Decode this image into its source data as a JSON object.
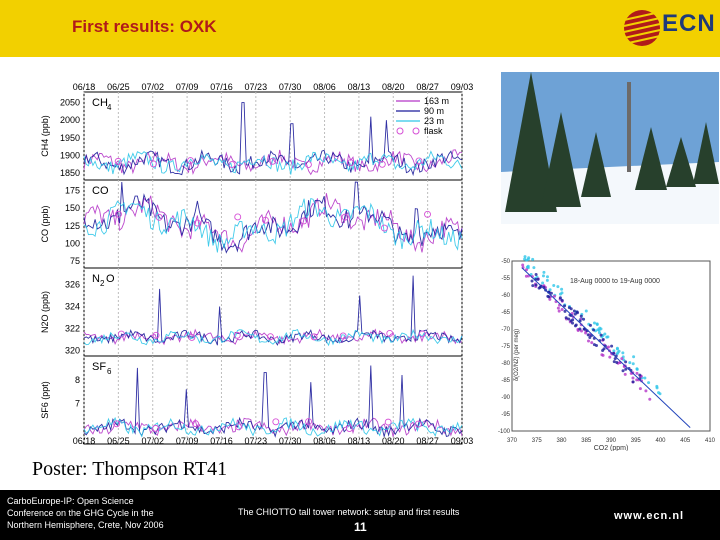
{
  "slide": {
    "title": "First results: OXK",
    "logo_text": "ECN",
    "poster": "Poster: Thompson RT41",
    "footer_left": [
      "CarboEurope-IP: Open Science",
      "Conference on the GHG Cycle in the",
      "Northern Hemisphere, Crete, Nov 2006"
    ],
    "footer_mid": "The CHIOTTO tall tower network: setup and first results",
    "page_number": "11",
    "url": "www.ecn.nl"
  },
  "chart_data": [
    {
      "type": "line",
      "x_ticks": [
        "06/18",
        "06/25",
        "07/02",
        "07/09",
        "07/16",
        "07/23",
        "07/30",
        "08/06",
        "08/13",
        "08/20",
        "08/27",
        "09/03"
      ],
      "series_legend": [
        {
          "name": "163 m",
          "color": "#b536c8"
        },
        {
          "name": "90 m",
          "color": "#1b1b9a"
        },
        {
          "name": "23 m",
          "color": "#2ec5e8"
        },
        {
          "name": "flask",
          "color": "#d64fd6"
        }
      ],
      "panels": [
        {
          "label": "CH",
          "sub": "4",
          "ylabel": "CH4 (ppb)",
          "yticks": [
            2050,
            2000,
            1950,
            1900,
            1850
          ],
          "ylim": [
            1830,
            2080
          ],
          "base": 1880,
          "amp": 30,
          "spikes": [
            [
              0.42,
              2050
            ],
            [
              0.55,
              1990
            ],
            [
              0.76,
              2010
            ],
            [
              0.8,
              2000
            ]
          ]
        },
        {
          "label": "CO",
          "sub": "",
          "ylabel": "CO (ppb)",
          "yticks": [
            175,
            150,
            125,
            100,
            75
          ],
          "ylim": [
            65,
            190
          ],
          "base": 128,
          "amp": 22,
          "spikes": [
            [
              0.1,
              172
            ],
            [
              0.3,
              168
            ],
            [
              0.72,
              175
            ],
            [
              0.88,
              165
            ]
          ]
        },
        {
          "label": "N",
          "sub": "2",
          "label_tail": "O",
          "ylabel": "N2O (ppb)",
          "yticks": [
            326,
            324,
            322,
            320
          ],
          "ylim": [
            319.5,
            327.5
          ],
          "base": 321.2,
          "amp": 0.6,
          "spikes": [
            [
              0.2,
              325.6
            ],
            [
              0.36,
              324
            ],
            [
              0.73,
              325
            ],
            [
              0.87,
              326.8
            ]
          ]
        },
        {
          "label": "SF",
          "sub": "6",
          "ylabel": "SF6 (ppt)",
          "yticks": [
            "8",
            "7"
          ],
          "ylim": [
            5.3,
            9
          ],
          "base": 6.0,
          "amp": 0.35,
          "spikes": [
            [
              0.14,
              8.5
            ],
            [
              0.27,
              7.6
            ],
            [
              0.48,
              8.3
            ],
            [
              0.6,
              7.9
            ],
            [
              0.76,
              8.6
            ],
            [
              0.84,
              8.2
            ]
          ]
        }
      ]
    },
    {
      "type": "scatter",
      "title": "18-Aug 0000 to 19-Aug 0000",
      "xlabel": "CO2 (ppm)",
      "ylabel": "δ(O2/N2) (per meg)",
      "x_ticks": [
        370,
        375,
        380,
        385,
        390,
        395,
        400,
        405,
        410
      ],
      "y_ticks": [
        -50,
        -55,
        -60,
        -65,
        -70,
        -75,
        -80,
        -85,
        -90,
        -95,
        -100
      ],
      "xlim": [
        370,
        410
      ],
      "ylim": [
        -100,
        -50
      ],
      "trend": {
        "x": [
          372,
          406
        ],
        "y": [
          -52,
          -99
        ]
      },
      "clusters": [
        {
          "color": "#2ec5e8",
          "x": [
            372,
            400
          ],
          "y_offset": 3
        },
        {
          "color": "#b536c8",
          "x": [
            372,
            398
          ],
          "y_offset": -1
        },
        {
          "color": "#1b1b9a",
          "x": [
            374,
            396
          ],
          "y_offset": 0
        }
      ]
    }
  ]
}
